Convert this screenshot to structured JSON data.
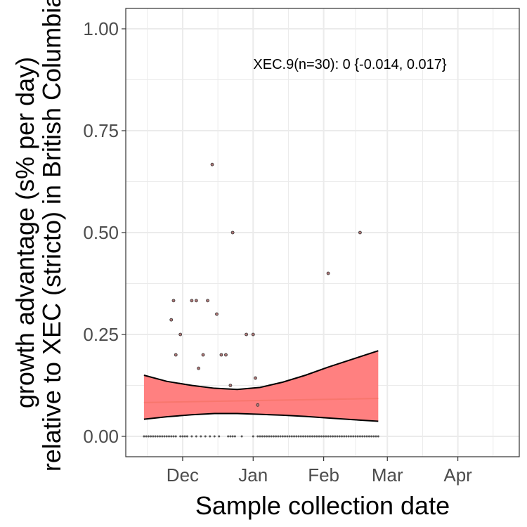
{
  "chart_data": {
    "type": "scatter",
    "title": "",
    "xlabel": "Sample collection date",
    "ylabel_lines": [
      "growth advantage (s% per day)",
      "relative to XEC (stricto) in British Columbia"
    ],
    "xaxis": {
      "type": "date",
      "range": [
        "2024-11-06",
        "2025-04-28"
      ],
      "ticks": [
        {
          "date": "2024-12-01",
          "label": "Dec"
        },
        {
          "date": "2025-01-01",
          "label": "Jan"
        },
        {
          "date": "2025-02-01",
          "label": "Feb"
        },
        {
          "date": "2025-03-01",
          "label": "Mar"
        },
        {
          "date": "2025-04-01",
          "label": "Apr"
        }
      ]
    },
    "yaxis": {
      "range": [
        -0.05,
        1.05
      ],
      "ticks": [
        0.0,
        0.25,
        0.5,
        0.75,
        1.0
      ],
      "tick_labels": [
        "0.00",
        "0.25",
        "0.50",
        "0.75",
        "1.00"
      ]
    },
    "grid": true,
    "annotation": "XEC.9(n=30): 0 {-0.014, 0.017}",
    "colors": {
      "ribbon_fill": "#ff8080",
      "fit_line": "#f8766d",
      "ribbon_edge": "#000000",
      "point_fill": "#b07878",
      "grid": "#ebebeb",
      "panel_border": "#333333"
    },
    "points": [
      {
        "date": "2024-11-26",
        "y": 0.286
      },
      {
        "date": "2024-11-27",
        "y": 0.333
      },
      {
        "date": "2024-11-28",
        "y": 0.2
      },
      {
        "date": "2024-11-30",
        "y": 0.25
      },
      {
        "date": "2024-12-05",
        "y": 0.333
      },
      {
        "date": "2024-12-07",
        "y": 0.333
      },
      {
        "date": "2024-12-08",
        "y": 0.167
      },
      {
        "date": "2024-12-10",
        "y": 0.2
      },
      {
        "date": "2024-12-12",
        "y": 0.333
      },
      {
        "date": "2024-12-14",
        "y": 0.667
      },
      {
        "date": "2024-12-16",
        "y": 0.3
      },
      {
        "date": "2024-12-18",
        "y": 0.2
      },
      {
        "date": "2024-12-20",
        "y": 0.2
      },
      {
        "date": "2024-12-22",
        "y": 0.125
      },
      {
        "date": "2024-12-23",
        "y": 0.5
      },
      {
        "date": "2024-12-29",
        "y": 0.25
      },
      {
        "date": "2025-01-01",
        "y": 0.25
      },
      {
        "date": "2025-01-02",
        "y": 0.143
      },
      {
        "date": "2025-01-03",
        "y": 0.077
      },
      {
        "date": "2025-02-03",
        "y": 0.4
      },
      {
        "date": "2025-02-17",
        "y": 0.5
      }
    ],
    "zero_points_dates": [
      "2024-11-14",
      "2024-11-15",
      "2024-11-16",
      "2024-11-17",
      "2024-11-18",
      "2024-11-19",
      "2024-11-20",
      "2024-11-21",
      "2024-11-22",
      "2024-11-23",
      "2024-11-24",
      "2024-11-25",
      "2024-11-26",
      "2024-11-27",
      "2024-11-28",
      "2024-11-30",
      "2024-12-01",
      "2024-12-02",
      "2024-12-03",
      "2024-12-05",
      "2024-12-07",
      "2024-12-09",
      "2024-12-11",
      "2024-12-13",
      "2024-12-15",
      "2024-12-17",
      "2024-12-21",
      "2024-12-22",
      "2024-12-23",
      "2024-12-24",
      "2024-12-27",
      "2025-01-01",
      "2025-01-03",
      "2025-01-04",
      "2025-01-05",
      "2025-01-06",
      "2025-01-07",
      "2025-01-08",
      "2025-01-09",
      "2025-01-10",
      "2025-01-11",
      "2025-01-12",
      "2025-01-13",
      "2025-01-14",
      "2025-01-15",
      "2025-01-16",
      "2025-01-17",
      "2025-01-18",
      "2025-01-19",
      "2025-01-20",
      "2025-01-21",
      "2025-01-22",
      "2025-01-23",
      "2025-01-24",
      "2025-01-25",
      "2025-01-26",
      "2025-01-27",
      "2025-01-28",
      "2025-01-29",
      "2025-01-30",
      "2025-01-31",
      "2025-02-01",
      "2025-02-02",
      "2025-02-03",
      "2025-02-04",
      "2025-02-05",
      "2025-02-06",
      "2025-02-07",
      "2025-02-08",
      "2025-02-09",
      "2025-02-10",
      "2025-02-11",
      "2025-02-12",
      "2025-02-13",
      "2025-02-14",
      "2025-02-15",
      "2025-02-16",
      "2025-02-17",
      "2025-02-18",
      "2025-02-19",
      "2025-02-20",
      "2025-02-21",
      "2025-02-22",
      "2025-02-23",
      "2025-02-24",
      "2025-02-25"
    ],
    "fit": {
      "dates": [
        "2024-11-14",
        "2025-02-25"
      ],
      "y": [
        0.083,
        0.093
      ]
    },
    "ribbon": {
      "dates": [
        "2024-11-14",
        "2024-11-24",
        "2024-12-05",
        "2024-12-15",
        "2024-12-25",
        "2025-01-04",
        "2025-01-14",
        "2025-01-24",
        "2025-02-03",
        "2025-02-14",
        "2025-02-25"
      ],
      "upper": [
        0.15,
        0.135,
        0.125,
        0.118,
        0.115,
        0.12,
        0.133,
        0.15,
        0.17,
        0.19,
        0.21
      ],
      "lower": [
        0.042,
        0.048,
        0.053,
        0.056,
        0.056,
        0.054,
        0.052,
        0.049,
        0.045,
        0.041,
        0.037
      ]
    }
  }
}
